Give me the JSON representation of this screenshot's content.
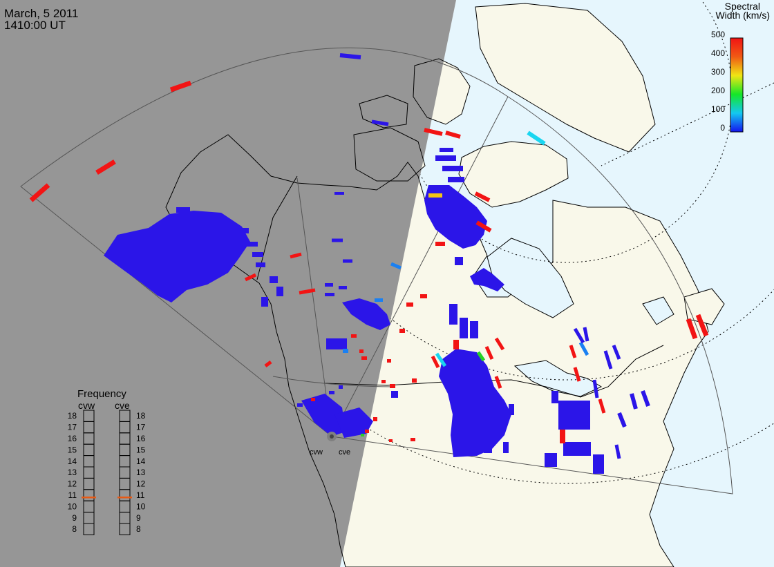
{
  "header": {
    "date": "March, 5 2011",
    "time": "1410:00 UT"
  },
  "colorbar": {
    "title_line1": "Spectral",
    "title_line2": "Width (km/s)",
    "ticks": [
      "500",
      "400",
      "300",
      "200",
      "100",
      "0"
    ]
  },
  "frequency": {
    "title": "Frequency",
    "radars": [
      {
        "name": "cvw",
        "value_mhz": 10.8
      },
      {
        "name": "cve",
        "value_mhz": 10.8
      }
    ],
    "scale": [
      "18",
      "17",
      "16",
      "15",
      "14",
      "13",
      "12",
      "11",
      "10",
      "9",
      "8"
    ]
  },
  "sites": {
    "west": "cvw",
    "east": "cve"
  },
  "colors": {
    "night": "#969696",
    "day_land": "#f9f8ea",
    "day_ocean": "#e6f6fd",
    "scatter_blue": "#2b15e8",
    "scatter_red": "#f21414",
    "scatter_cyan": "#19d6f0",
    "scatter_green": "#27d127",
    "scatter_yellow": "#f2c414",
    "scatter_light_blue": "#1a80f2",
    "freq_marker": "#e85a14"
  }
}
